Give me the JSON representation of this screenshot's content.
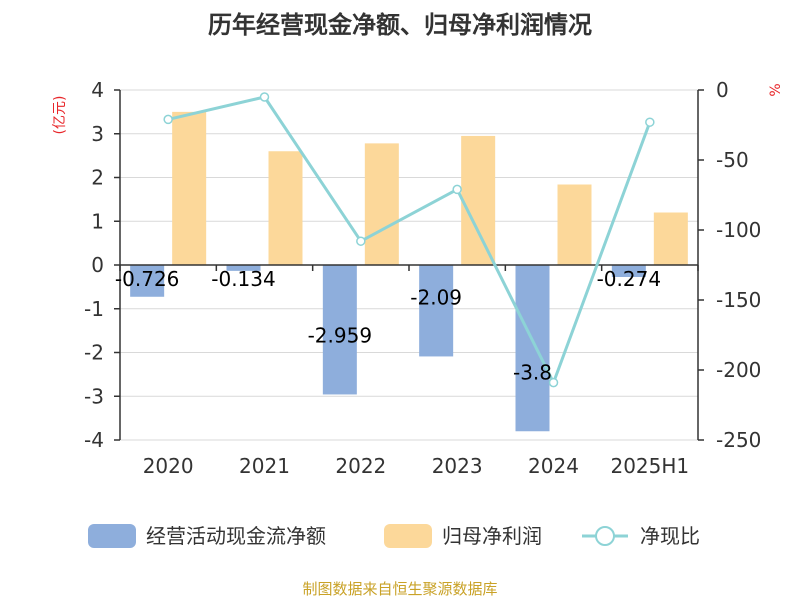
{
  "chart_data": {
    "type": "bar",
    "title": "历年经营现金净额、归母净利润情况",
    "categories": [
      "2020",
      "2021",
      "2022",
      "2023",
      "2024",
      "2025H1"
    ],
    "left_axis": {
      "label": "(亿元)",
      "ylim": [
        -4,
        4
      ],
      "ticks": [
        "4",
        "3",
        "2",
        "1",
        "0",
        "-1",
        "-2",
        "-3",
        "-4"
      ]
    },
    "right_axis": {
      "label": "%",
      "ylim": [
        -250,
        0
      ],
      "ticks": [
        "0",
        "-50",
        "-100",
        "-150",
        "-200",
        "-250"
      ]
    },
    "series": [
      {
        "name": "经营活动现金流净额",
        "type": "bar",
        "axis": "left",
        "color": "#8eaedc",
        "values": [
          -0.726,
          -0.134,
          -2.959,
          -2.09,
          -3.8,
          -0.274
        ],
        "labels": [
          "-0.726",
          "-0.134",
          "-2.959",
          "-2.09",
          "-3.8",
          "-0.274"
        ]
      },
      {
        "name": "归母净利润",
        "type": "bar",
        "axis": "left",
        "color": "#fcd89a",
        "values": [
          3.5,
          2.6,
          2.78,
          2.95,
          1.84,
          1.2
        ]
      },
      {
        "name": "净现比",
        "type": "line",
        "axis": "right",
        "color": "#8dd3d6",
        "values": [
          -21,
          -5,
          -108,
          -71,
          -209,
          -23
        ]
      }
    ],
    "grid": true,
    "legend": "bottom",
    "source": "制图数据来自恒生聚源数据库"
  }
}
